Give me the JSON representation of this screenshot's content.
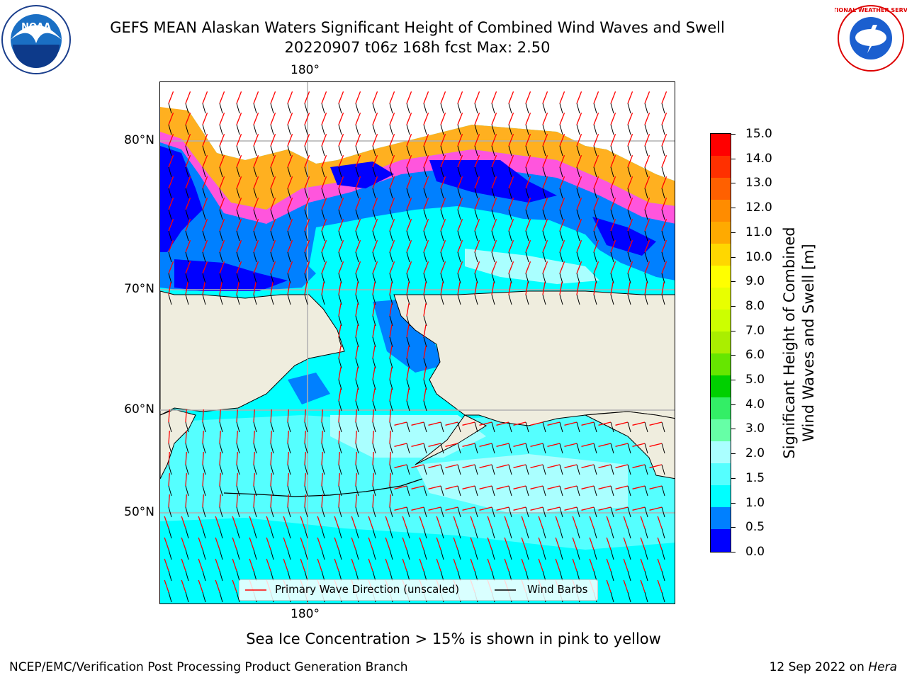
{
  "header": {
    "title_line1": "GEFS MEAN Alaskan Waters Significant Height of Combined Wind Waves and Swell",
    "title_line2": "20220907 t06z 168h fcst   Max: 2.50"
  },
  "logos": {
    "noaa": {
      "icon": "noaa-seal-icon",
      "text": "NOAA"
    },
    "nws": {
      "icon": "nws-seal-icon",
      "text": "NATIONAL WEATHER SERVICE"
    }
  },
  "map": {
    "lon_label_top": "180°",
    "lon_label_bottom": "180°",
    "lat_labels": [
      "80°N",
      "70°N",
      "60°N",
      "50°N"
    ],
    "legend": {
      "wave_dir": "Primary Wave Direction (unscaled)",
      "wind_barbs": "Wind Barbs"
    },
    "colors": {
      "land": "#efedde",
      "wave_arrow": "#ff0000",
      "barb": "#000000",
      "grid": "#b0b0b0"
    }
  },
  "colorbar": {
    "title_line1": "Significant Height of Combined",
    "title_line2": "Wind Waves and Swell [m]",
    "ticks": [
      "15.0",
      "14.0",
      "13.0",
      "12.0",
      "11.0",
      "10.0",
      "9.0",
      "8.0",
      "7.0",
      "6.0",
      "5.0",
      "4.0",
      "3.0",
      "2.0",
      "1.5",
      "1.0",
      "0.5",
      "0.0"
    ],
    "colors_top_to_bottom": [
      "#ff0000",
      "#ff3000",
      "#ff6000",
      "#ff8c00",
      "#ffaa00",
      "#ffd700",
      "#ffff00",
      "#e8ff00",
      "#ccff00",
      "#aaee00",
      "#66e600",
      "#00d000",
      "#33ee66",
      "#66ffa6",
      "#aaffff",
      "#55ffff",
      "#00ffff",
      "#0080ff",
      "#0000ff"
    ]
  },
  "subtitle": "Sea Ice Concentration > 15% is shown in pink to yellow",
  "footer": {
    "left": "NCEP/EMC/Verification Post Processing Product Generation Branch",
    "right_date": "12 Sep 2022 on",
    "right_host": "Hera"
  }
}
